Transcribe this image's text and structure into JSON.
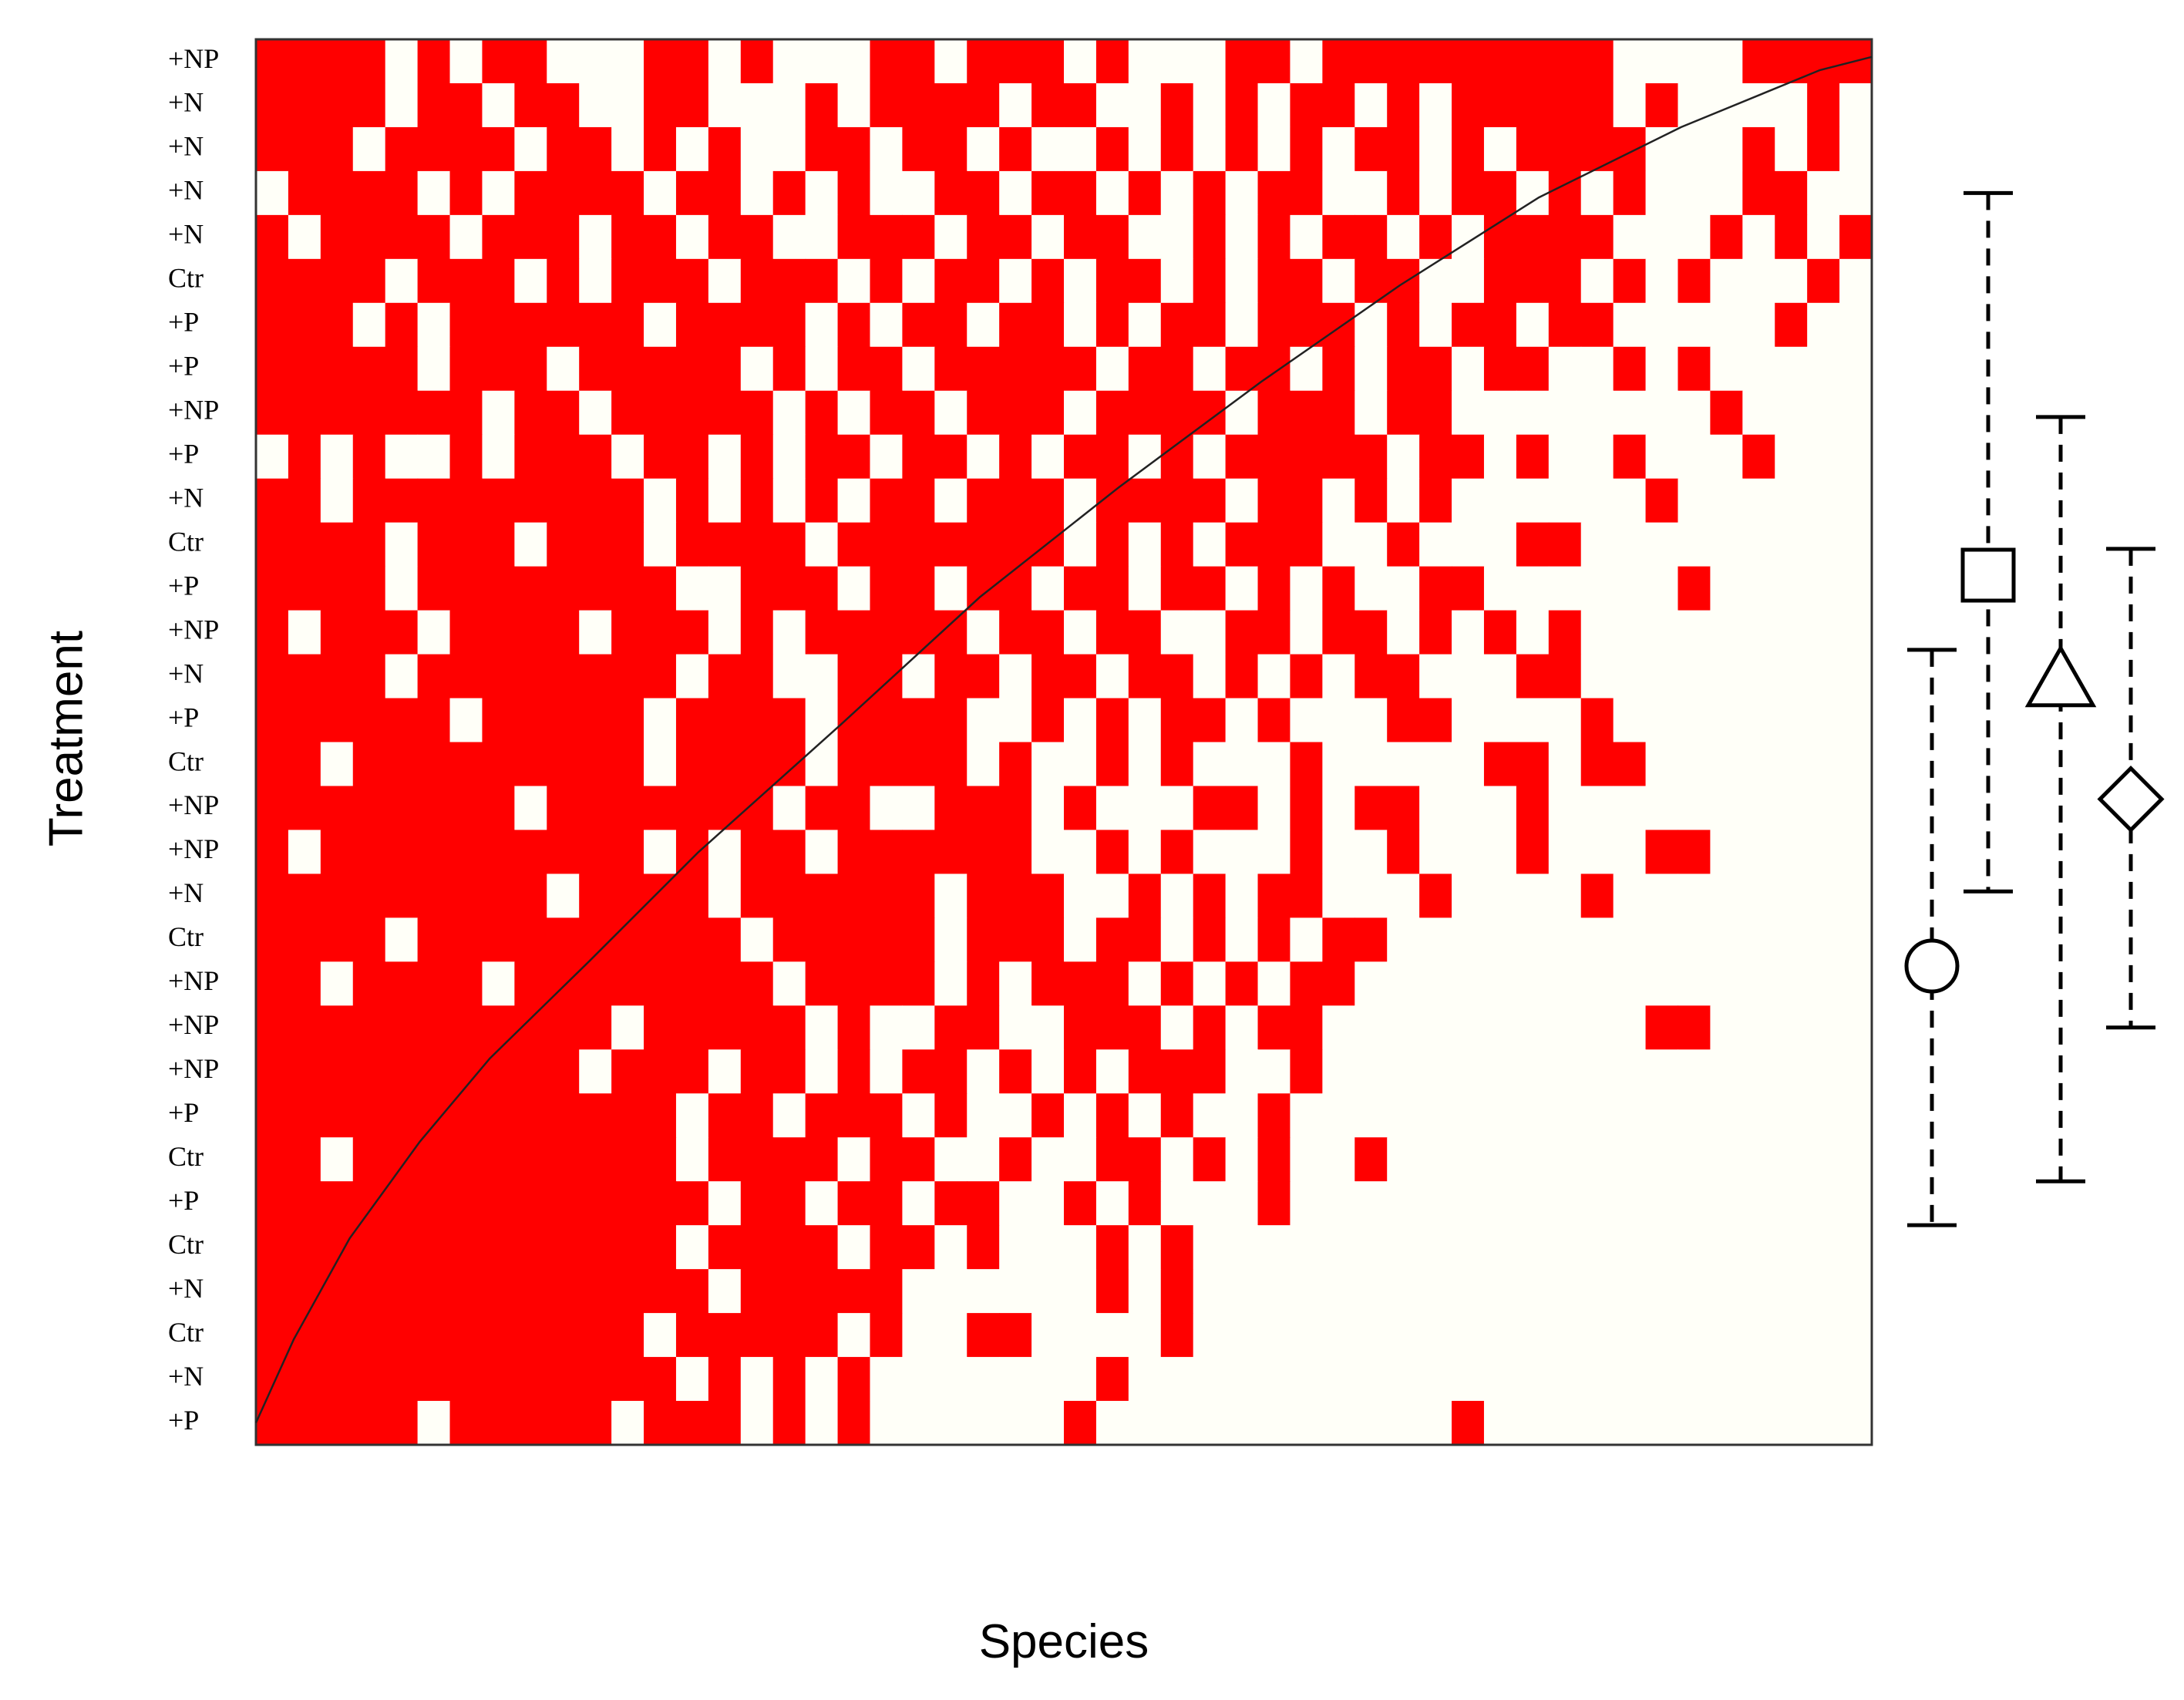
{
  "chart_data": {
    "type": "matrix",
    "y_label": "Treatment",
    "x_label": "Species",
    "present_color": "#ff0000",
    "absent_color": "#fffff8",
    "rows": [
      "+NP",
      "+N",
      "+N",
      "+N",
      "+N",
      "Ctr",
      "+P",
      "+P",
      "+NP",
      "+P",
      "+N",
      "Ctr",
      "+P",
      "+NP",
      "+N",
      "+P",
      "Ctr",
      "+NP",
      "+NP",
      "+N",
      "Ctr",
      "+NP",
      "+NP",
      "+NP",
      "+P",
      "Ctr",
      "+P",
      "Ctr",
      "+N",
      "Ctr",
      "+N",
      "+P"
    ],
    "matrix": [
      [
        1,
        1,
        1,
        1,
        0,
        1,
        0,
        1,
        1,
        0,
        0,
        0,
        1,
        1,
        0,
        1,
        0,
        0,
        0,
        1,
        1,
        0,
        1,
        1,
        1,
        0,
        1,
        0,
        0,
        0,
        1,
        1,
        0,
        1,
        1,
        1,
        1,
        1,
        1,
        1,
        1,
        1,
        0,
        0,
        0,
        0,
        1,
        1,
        1,
        1
      ],
      [
        1,
        1,
        1,
        1,
        0,
        1,
        1,
        0,
        1,
        1,
        0,
        0,
        1,
        1,
        0,
        0,
        0,
        1,
        0,
        1,
        1,
        1,
        1,
        0,
        1,
        1,
        0,
        0,
        1,
        0,
        1,
        0,
        1,
        1,
        0,
        1,
        0,
        1,
        1,
        1,
        1,
        1,
        0,
        1,
        0,
        0,
        0,
        0,
        1,
        0
      ],
      [
        1,
        1,
        1,
        0,
        1,
        1,
        1,
        1,
        0,
        1,
        1,
        0,
        1,
        0,
        1,
        0,
        0,
        1,
        1,
        0,
        1,
        1,
        0,
        1,
        0,
        0,
        1,
        0,
        1,
        0,
        1,
        0,
        1,
        0,
        1,
        1,
        0,
        1,
        0,
        1,
        1,
        1,
        1,
        0,
        0,
        0,
        1,
        0,
        1,
        0
      ],
      [
        0,
        1,
        1,
        1,
        1,
        0,
        1,
        0,
        1,
        1,
        1,
        1,
        0,
        1,
        1,
        0,
        1,
        0,
        1,
        0,
        0,
        1,
        1,
        0,
        1,
        1,
        0,
        1,
        0,
        1,
        0,
        1,
        1,
        0,
        0,
        1,
        0,
        1,
        1,
        0,
        1,
        0,
        1,
        0,
        0,
        0,
        1,
        1,
        0,
        0
      ],
      [
        1,
        0,
        1,
        1,
        1,
        1,
        0,
        1,
        1,
        1,
        0,
        1,
        1,
        0,
        1,
        1,
        0,
        0,
        1,
        1,
        1,
        0,
        1,
        1,
        0,
        1,
        1,
        0,
        0,
        1,
        0,
        1,
        0,
        1,
        1,
        0,
        1,
        0,
        1,
        1,
        1,
        1,
        0,
        0,
        0,
        1,
        0,
        1,
        0,
        1
      ],
      [
        1,
        1,
        1,
        1,
        0,
        1,
        1,
        1,
        0,
        1,
        0,
        1,
        1,
        1,
        0,
        1,
        1,
        1,
        0,
        1,
        0,
        1,
        1,
        0,
        1,
        0,
        1,
        1,
        0,
        1,
        0,
        1,
        1,
        0,
        1,
        1,
        0,
        0,
        1,
        1,
        1,
        0,
        1,
        0,
        1,
        0,
        0,
        0,
        1,
        0
      ],
      [
        1,
        1,
        1,
        0,
        1,
        0,
        1,
        1,
        1,
        1,
        1,
        1,
        0,
        1,
        1,
        1,
        1,
        0,
        1,
        0,
        1,
        1,
        0,
        1,
        1,
        0,
        1,
        0,
        1,
        1,
        0,
        1,
        1,
        1,
        0,
        1,
        0,
        1,
        1,
        0,
        1,
        1,
        0,
        0,
        0,
        0,
        0,
        1,
        0,
        0
      ],
      [
        1,
        1,
        1,
        1,
        1,
        0,
        1,
        1,
        1,
        0,
        1,
        1,
        1,
        1,
        1,
        0,
        1,
        0,
        1,
        1,
        0,
        1,
        1,
        1,
        1,
        1,
        0,
        1,
        1,
        0,
        1,
        1,
        0,
        1,
        0,
        1,
        1,
        0,
        1,
        1,
        0,
        0,
        1,
        0,
        1,
        0,
        0,
        0,
        0,
        0
      ],
      [
        1,
        1,
        1,
        1,
        1,
        1,
        1,
        0,
        1,
        1,
        0,
        1,
        1,
        1,
        1,
        1,
        0,
        1,
        0,
        1,
        1,
        0,
        1,
        1,
        1,
        0,
        1,
        1,
        1,
        1,
        0,
        1,
        1,
        1,
        0,
        1,
        1,
        0,
        0,
        0,
        0,
        0,
        0,
        0,
        0,
        1,
        0,
        0,
        0,
        0
      ],
      [
        0,
        1,
        0,
        1,
        0,
        0,
        1,
        0,
        1,
        1,
        1,
        0,
        1,
        1,
        0,
        1,
        0,
        1,
        1,
        0,
        1,
        1,
        0,
        1,
        0,
        1,
        1,
        0,
        1,
        0,
        1,
        1,
        1,
        1,
        1,
        0,
        1,
        1,
        0,
        1,
        0,
        0,
        1,
        0,
        0,
        0,
        1,
        0,
        0,
        0
      ],
      [
        1,
        1,
        0,
        1,
        1,
        1,
        1,
        1,
        1,
        1,
        1,
        1,
        0,
        1,
        0,
        1,
        0,
        1,
        0,
        1,
        1,
        0,
        1,
        1,
        1,
        0,
        1,
        1,
        1,
        1,
        0,
        1,
        1,
        0,
        1,
        0,
        1,
        0,
        0,
        0,
        0,
        0,
        0,
        1,
        0,
        0,
        0,
        0,
        0,
        0
      ],
      [
        1,
        1,
        1,
        1,
        0,
        1,
        1,
        1,
        0,
        1,
        1,
        1,
        0,
        1,
        1,
        1,
        1,
        0,
        1,
        1,
        1,
        1,
        1,
        1,
        1,
        0,
        1,
        0,
        1,
        0,
        1,
        1,
        1,
        0,
        0,
        1,
        0,
        0,
        0,
        1,
        1,
        0,
        0,
        0,
        0,
        0,
        0,
        0,
        0,
        0
      ],
      [
        1,
        1,
        1,
        1,
        0,
        1,
        1,
        1,
        1,
        1,
        1,
        1,
        1,
        0,
        0,
        1,
        1,
        1,
        0,
        1,
        1,
        0,
        1,
        1,
        0,
        1,
        1,
        0,
        1,
        1,
        0,
        1,
        0,
        1,
        0,
        0,
        1,
        1,
        0,
        0,
        0,
        0,
        0,
        0,
        1,
        0,
        0,
        0,
        0,
        0
      ],
      [
        1,
        0,
        1,
        1,
        1,
        0,
        1,
        1,
        1,
        1,
        0,
        1,
        1,
        1,
        0,
        1,
        0,
        1,
        1,
        1,
        1,
        1,
        0,
        1,
        1,
        0,
        1,
        1,
        0,
        0,
        1,
        1,
        0,
        1,
        1,
        0,
        1,
        0,
        1,
        0,
        1,
        0,
        0,
        0,
        0,
        0,
        0,
        0,
        0,
        0
      ],
      [
        1,
        1,
        1,
        1,
        0,
        1,
        1,
        1,
        1,
        1,
        1,
        1,
        1,
        0,
        1,
        1,
        0,
        0,
        1,
        1,
        0,
        1,
        1,
        0,
        1,
        1,
        0,
        1,
        1,
        0,
        1,
        0,
        1,
        0,
        1,
        1,
        0,
        0,
        0,
        1,
        1,
        0,
        0,
        0,
        0,
        0,
        0,
        0,
        0,
        0
      ],
      [
        1,
        1,
        1,
        1,
        1,
        1,
        0,
        1,
        1,
        1,
        1,
        1,
        0,
        1,
        1,
        1,
        1,
        0,
        1,
        1,
        1,
        1,
        0,
        0,
        1,
        0,
        1,
        0,
        1,
        1,
        0,
        1,
        0,
        0,
        0,
        1,
        1,
        0,
        0,
        0,
        0,
        1,
        0,
        0,
        0,
        0,
        0,
        0,
        0,
        0
      ],
      [
        1,
        1,
        0,
        1,
        1,
        1,
        1,
        1,
        1,
        1,
        1,
        1,
        0,
        1,
        1,
        1,
        1,
        0,
        1,
        1,
        1,
        1,
        0,
        1,
        0,
        0,
        1,
        0,
        1,
        0,
        0,
        0,
        1,
        0,
        0,
        0,
        0,
        0,
        1,
        1,
        0,
        1,
        1,
        0,
        0,
        0,
        0,
        0,
        0,
        0
      ],
      [
        1,
        1,
        1,
        1,
        1,
        1,
        1,
        1,
        0,
        1,
        1,
        1,
        1,
        1,
        1,
        1,
        0,
        1,
        1,
        0,
        0,
        1,
        1,
        1,
        0,
        1,
        0,
        0,
        0,
        1,
        1,
        0,
        1,
        0,
        1,
        1,
        0,
        0,
        0,
        1,
        0,
        0,
        0,
        0,
        0,
        0,
        0,
        0,
        0,
        0
      ],
      [
        1,
        0,
        1,
        1,
        1,
        1,
        1,
        1,
        1,
        1,
        1,
        1,
        0,
        1,
        0,
        1,
        1,
        0,
        1,
        1,
        1,
        1,
        1,
        1,
        0,
        0,
        1,
        0,
        1,
        0,
        0,
        0,
        1,
        0,
        0,
        1,
        0,
        0,
        0,
        1,
        0,
        0,
        0,
        1,
        1,
        0,
        0,
        0,
        0,
        0
      ],
      [
        1,
        1,
        1,
        1,
        1,
        1,
        1,
        1,
        1,
        0,
        1,
        1,
        1,
        1,
        0,
        1,
        1,
        1,
        1,
        1,
        1,
        0,
        1,
        1,
        1,
        0,
        0,
        1,
        0,
        1,
        0,
        1,
        1,
        0,
        0,
        0,
        1,
        0,
        0,
        0,
        0,
        1,
        0,
        0,
        0,
        0,
        0,
        0,
        0,
        0
      ],
      [
        1,
        1,
        1,
        1,
        0,
        1,
        1,
        1,
        1,
        1,
        1,
        1,
        1,
        1,
        1,
        0,
        1,
        1,
        1,
        1,
        1,
        0,
        1,
        1,
        1,
        0,
        1,
        1,
        0,
        1,
        0,
        1,
        0,
        1,
        1,
        0,
        0,
        0,
        0,
        0,
        0,
        0,
        0,
        0,
        0,
        0,
        0,
        0,
        0,
        0
      ],
      [
        1,
        1,
        0,
        1,
        1,
        1,
        1,
        0,
        1,
        1,
        1,
        1,
        1,
        1,
        1,
        1,
        0,
        1,
        1,
        1,
        1,
        0,
        1,
        0,
        1,
        1,
        1,
        0,
        1,
        0,
        1,
        0,
        1,
        1,
        0,
        0,
        0,
        0,
        0,
        0,
        0,
        0,
        0,
        0,
        0,
        0,
        0,
        0,
        0,
        0
      ],
      [
        1,
        1,
        1,
        1,
        1,
        1,
        1,
        1,
        1,
        1,
        1,
        0,
        1,
        1,
        1,
        1,
        1,
        0,
        1,
        0,
        0,
        1,
        1,
        0,
        0,
        1,
        1,
        1,
        0,
        1,
        0,
        1,
        1,
        0,
        0,
        0,
        0,
        0,
        0,
        0,
        0,
        0,
        0,
        1,
        1,
        0,
        0,
        0,
        0,
        0
      ],
      [
        1,
        1,
        1,
        1,
        1,
        1,
        1,
        1,
        1,
        1,
        0,
        1,
        1,
        1,
        0,
        1,
        1,
        0,
        1,
        0,
        1,
        1,
        0,
        1,
        0,
        1,
        0,
        1,
        1,
        1,
        0,
        0,
        1,
        0,
        0,
        0,
        0,
        0,
        0,
        0,
        0,
        0,
        0,
        0,
        0,
        0,
        0,
        0,
        0,
        0
      ],
      [
        1,
        1,
        1,
        1,
        1,
        1,
        1,
        1,
        1,
        1,
        1,
        1,
        1,
        0,
        1,
        1,
        0,
        1,
        1,
        1,
        0,
        1,
        0,
        0,
        1,
        0,
        1,
        0,
        1,
        0,
        0,
        1,
        0,
        0,
        0,
        0,
        0,
        0,
        0,
        0,
        0,
        0,
        0,
        0,
        0,
        0,
        0,
        0,
        0,
        0
      ],
      [
        1,
        1,
        0,
        1,
        1,
        1,
        1,
        1,
        1,
        1,
        1,
        1,
        1,
        0,
        1,
        1,
        1,
        1,
        0,
        1,
        1,
        0,
        0,
        1,
        0,
        0,
        1,
        1,
        0,
        1,
        0,
        1,
        0,
        0,
        1,
        0,
        0,
        0,
        0,
        0,
        0,
        0,
        0,
        0,
        0,
        0,
        0,
        0,
        0,
        0
      ],
      [
        1,
        1,
        1,
        1,
        1,
        1,
        1,
        1,
        1,
        1,
        1,
        1,
        1,
        1,
        0,
        1,
        1,
        0,
        1,
        1,
        0,
        1,
        1,
        0,
        0,
        1,
        0,
        1,
        0,
        0,
        0,
        1,
        0,
        0,
        0,
        0,
        0,
        0,
        0,
        0,
        0,
        0,
        0,
        0,
        0,
        0,
        0,
        0,
        0,
        0
      ],
      [
        1,
        1,
        1,
        1,
        1,
        1,
        1,
        1,
        1,
        1,
        1,
        1,
        1,
        0,
        1,
        1,
        1,
        1,
        0,
        1,
        1,
        0,
        1,
        0,
        0,
        0,
        1,
        0,
        1,
        0,
        0,
        0,
        0,
        0,
        0,
        0,
        0,
        0,
        0,
        0,
        0,
        0,
        0,
        0,
        0,
        0,
        0,
        0,
        0,
        0
      ],
      [
        1,
        1,
        1,
        1,
        1,
        1,
        1,
        1,
        1,
        1,
        1,
        1,
        1,
        1,
        0,
        1,
        1,
        1,
        1,
        1,
        0,
        0,
        0,
        0,
        0,
        0,
        1,
        0,
        1,
        0,
        0,
        0,
        0,
        0,
        0,
        0,
        0,
        0,
        0,
        0,
        0,
        0,
        0,
        0,
        0,
        0,
        0,
        0,
        0,
        0
      ],
      [
        1,
        1,
        1,
        1,
        1,
        1,
        1,
        1,
        1,
        1,
        1,
        1,
        0,
        1,
        1,
        1,
        1,
        1,
        0,
        1,
        0,
        0,
        1,
        1,
        0,
        0,
        0,
        0,
        1,
        0,
        0,
        0,
        0,
        0,
        0,
        0,
        0,
        0,
        0,
        0,
        0,
        0,
        0,
        0,
        0,
        0,
        0,
        0,
        0,
        0
      ],
      [
        1,
        1,
        1,
        1,
        1,
        1,
        1,
        1,
        1,
        1,
        1,
        1,
        1,
        0,
        1,
        0,
        1,
        0,
        1,
        0,
        0,
        0,
        0,
        0,
        0,
        0,
        1,
        0,
        0,
        0,
        0,
        0,
        0,
        0,
        0,
        0,
        0,
        0,
        0,
        0,
        0,
        0,
        0,
        0,
        0,
        0,
        0,
        0,
        0,
        0
      ],
      [
        1,
        1,
        1,
        1,
        1,
        0,
        1,
        1,
        1,
        1,
        1,
        0,
        1,
        1,
        1,
        0,
        1,
        0,
        1,
        0,
        0,
        0,
        0,
        0,
        0,
        1,
        0,
        0,
        0,
        0,
        0,
        0,
        0,
        0,
        0,
        0,
        0,
        1,
        0,
        0,
        0,
        0,
        0,
        0,
        0,
        0,
        0,
        0,
        0,
        0
      ]
    ],
    "curve": {
      "x": [
        0,
        1.17,
        2.9,
        5.07,
        7.24,
        10.3,
        13.7,
        18.1,
        22.4,
        26.7,
        31.1,
        35.4,
        39.7,
        44.1,
        48.4,
        50
      ],
      "y": [
        31.5,
        29.6,
        27.3,
        25.1,
        23.2,
        21.0,
        18.5,
        15.6,
        12.7,
        10.2,
        7.8,
        5.6,
        3.6,
        2.0,
        0.7,
        0.4
      ]
    },
    "markers": [
      {
        "shape": "circle",
        "value": 21.1,
        "low": 13.9,
        "high": 27.0
      },
      {
        "shape": "square",
        "value": 12.2,
        "low": 3.5,
        "high": 19.4
      },
      {
        "shape": "triangle",
        "value": 14.6,
        "low": 8.6,
        "high": 26.0
      },
      {
        "shape": "diamond",
        "value": 17.3,
        "low": 11.6,
        "high": 22.5
      }
    ]
  }
}
